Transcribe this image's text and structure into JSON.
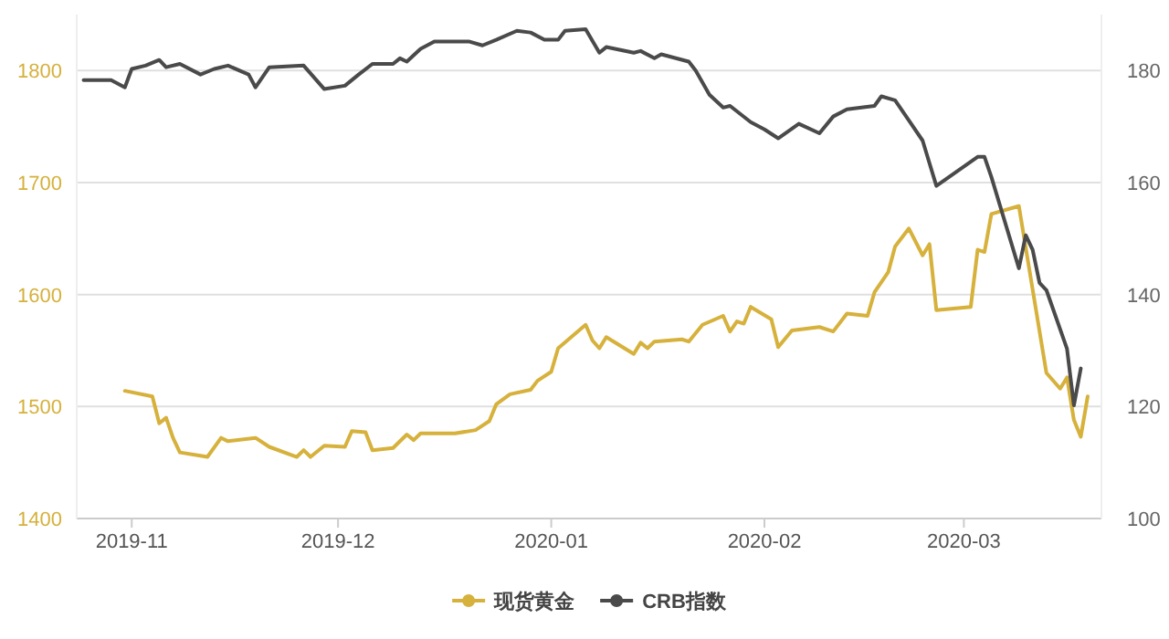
{
  "chart_data": {
    "type": "line",
    "xlim": [
      "2019-10-24",
      "2020-03-21"
    ],
    "xticks": [
      "2019-11",
      "2019-12",
      "2020-01",
      "2020-02",
      "2020-03"
    ],
    "ylim": [
      1400,
      1850
    ],
    "yticks": [
      1400,
      1500,
      1600,
      1700,
      1800
    ],
    "y2lim": [
      100,
      190
    ],
    "y2ticks": [
      100,
      120,
      140,
      160,
      180
    ],
    "grid": "y",
    "legend": "bottom",
    "series": [
      {
        "name": "现货黄金",
        "color": "#d6b13c",
        "x": [
          "2019-10-31",
          "2019-11-04",
          "2019-11-05",
          "2019-11-06",
          "2019-11-07",
          "2019-11-08",
          "2019-11-11",
          "2019-11-12",
          "2019-11-14",
          "2019-11-15",
          "2019-11-19",
          "2019-11-21",
          "2019-11-25",
          "2019-11-26",
          "2019-11-27",
          "2019-11-29",
          "2019-12-02",
          "2019-12-03",
          "2019-12-05",
          "2019-12-06",
          "2019-12-09",
          "2019-12-11",
          "2019-12-12",
          "2019-12-13",
          "2019-12-18",
          "2019-12-21",
          "2019-12-23",
          "2019-12-24",
          "2019-12-26",
          "2019-12-29",
          "2019-12-30",
          "2020-01-01",
          "2020-01-02",
          "2020-01-06",
          "2020-01-07",
          "2020-01-08",
          "2020-01-09",
          "2020-01-13",
          "2020-01-14",
          "2020-01-15",
          "2020-01-16",
          "2020-01-20",
          "2020-01-21",
          "2020-01-23",
          "2020-01-26",
          "2020-01-27",
          "2020-01-28",
          "2020-01-29",
          "2020-01-30",
          "2020-02-02",
          "2020-02-03",
          "2020-02-05",
          "2020-02-09",
          "2020-02-11",
          "2020-02-13",
          "2020-02-16",
          "2020-02-17",
          "2020-02-19",
          "2020-02-20",
          "2020-02-22",
          "2020-02-24",
          "2020-02-25",
          "2020-02-26",
          "2020-03-02",
          "2020-03-03",
          "2020-03-04",
          "2020-03-05",
          "2020-03-09",
          "2020-03-13",
          "2020-03-15",
          "2020-03-16",
          "2020-03-17",
          "2020-03-18",
          "2020-03-19"
        ],
        "values": [
          1514,
          1509,
          1485,
          1490,
          1472,
          1459,
          1456,
          1455,
          1472,
          1469,
          1472,
          1464,
          1455,
          1461,
          1455,
          1465,
          1464,
          1478,
          1477,
          1461,
          1463,
          1475,
          1470,
          1476,
          1476,
          1479,
          1487,
          1502,
          1511,
          1515,
          1523,
          1531,
          1552,
          1573,
          1559,
          1552,
          1562,
          1547,
          1557,
          1552,
          1558,
          1560,
          1558,
          1573,
          1581,
          1567,
          1576,
          1574,
          1589,
          1578,
          1553,
          1568,
          1571,
          1567,
          1583,
          1581,
          1602,
          1620,
          1643,
          1659,
          1635,
          1645,
          1586,
          1589,
          1640,
          1638,
          1672,
          1679,
          1530,
          1516,
          1526,
          1488,
          1473,
          1509
        ]
      },
      {
        "name": "CRB指数",
        "color": "#4a4a4a",
        "axis": "y2",
        "x": [
          "2019-10-25",
          "2019-10-29",
          "2019-10-31",
          "2019-11-01",
          "2019-11-03",
          "2019-11-05",
          "2019-11-06",
          "2019-11-08",
          "2019-11-11",
          "2019-11-13",
          "2019-11-15",
          "2019-11-18",
          "2019-11-19",
          "2019-11-21",
          "2019-11-26",
          "2019-11-29",
          "2019-12-02",
          "2019-12-04",
          "2019-12-06",
          "2019-12-09",
          "2019-12-10",
          "2019-12-11",
          "2019-12-13",
          "2019-12-15",
          "2019-12-17",
          "2019-12-20",
          "2019-12-22",
          "2019-12-24",
          "2019-12-27",
          "2019-12-29",
          "2019-12-31",
          "2020-01-02",
          "2020-01-03",
          "2020-01-06",
          "2020-01-08",
          "2020-01-09",
          "2020-01-13",
          "2020-01-14",
          "2020-01-16",
          "2020-01-17",
          "2020-01-21",
          "2020-01-22",
          "2020-01-24",
          "2020-01-26",
          "2020-01-27",
          "2020-01-30",
          "2020-02-01",
          "2020-02-03",
          "2020-02-06",
          "2020-02-09",
          "2020-02-11",
          "2020-02-13",
          "2020-02-17",
          "2020-02-18",
          "2020-02-20",
          "2020-02-22",
          "2020-02-24",
          "2020-02-26",
          "2020-03-03",
          "2020-03-04",
          "2020-03-05",
          "2020-03-09",
          "2020-03-10",
          "2020-03-11",
          "2020-03-12",
          "2020-03-13",
          "2020-03-16",
          "2020-03-17",
          "2020-03-18"
        ],
        "values": [
          178.3,
          178.3,
          177,
          180.3,
          180.9,
          181.9,
          180.6,
          181.2,
          179.3,
          180.3,
          180.9,
          179.3,
          177,
          180.6,
          180.9,
          176.7,
          177.3,
          179.3,
          181.2,
          181.2,
          182.2,
          181.6,
          183.9,
          185.2,
          185.2,
          185.2,
          184.5,
          185.5,
          187.1,
          186.8,
          185.5,
          185.5,
          187.1,
          187.4,
          183.2,
          184.2,
          183.2,
          183.5,
          182.2,
          182.9,
          181.6,
          180,
          175.7,
          173.4,
          173.7,
          170.8,
          169.5,
          167.9,
          170.5,
          168.8,
          171.8,
          173.1,
          173.7,
          175.4,
          174.7,
          171.1,
          167.5,
          159.4,
          164.6,
          164.6,
          161,
          144.7,
          150.6,
          148,
          142.1,
          140.8,
          130.3,
          120.2,
          126.8
        ]
      }
    ]
  }
}
